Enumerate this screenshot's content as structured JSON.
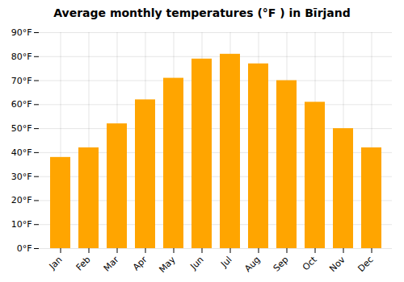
{
  "chart_data": {
    "type": "bar",
    "title": "Average monthly temperatures (°F ) in Bīrjand",
    "categories": [
      "Jan",
      "Feb",
      "Mar",
      "Apr",
      "May",
      "Jun",
      "Jul",
      "Aug",
      "Sep",
      "Oct",
      "Nov",
      "Dec"
    ],
    "values": [
      38,
      42,
      52,
      62,
      71,
      79,
      81,
      77,
      70,
      61,
      50,
      42
    ],
    "color": "#FFA500",
    "ylim": [
      0,
      90
    ],
    "yticks": [
      {
        "value": 0,
        "label": "0°F"
      },
      {
        "value": 10,
        "label": "10°F"
      },
      {
        "value": 20,
        "label": "20°F"
      },
      {
        "value": 30,
        "label": "30°F"
      },
      {
        "value": 40,
        "label": "40°F"
      },
      {
        "value": 50,
        "label": "50°F"
      },
      {
        "value": 60,
        "label": "60°F"
      },
      {
        "value": 70,
        "label": "70°F"
      },
      {
        "value": 80,
        "label": "80°F"
      },
      {
        "value": 90,
        "label": "90°F"
      }
    ],
    "grid": true
  }
}
